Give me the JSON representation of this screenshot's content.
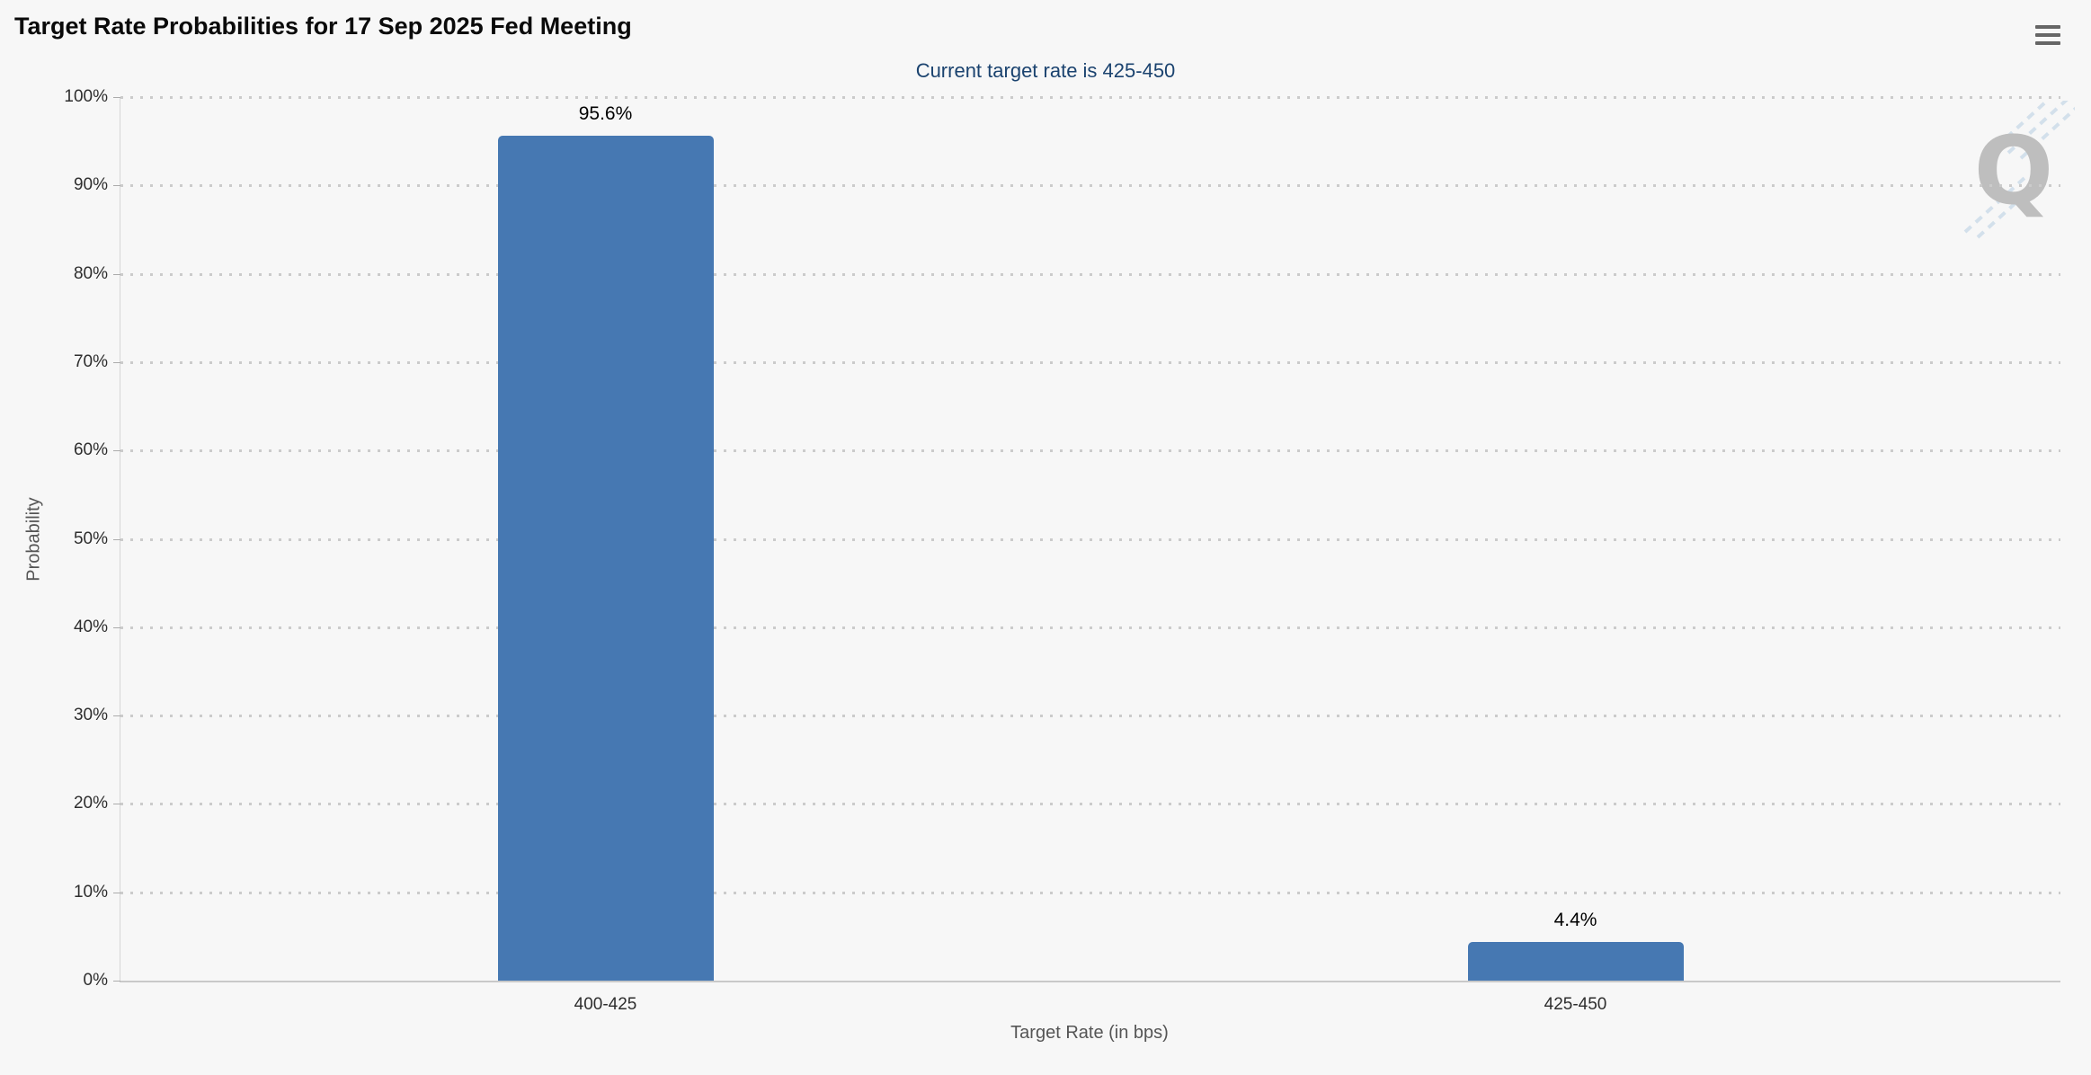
{
  "watermark": {
    "letter": "Q"
  },
  "menu": {
    "tooltip": "Chart context menu"
  },
  "chart_data": {
    "type": "bar",
    "title": "Target Rate Probabilities for 17 Sep 2025 Fed Meeting",
    "subtitle": "Current target rate is 425-450",
    "categories": [
      "400-425",
      "425-450"
    ],
    "values": [
      95.6,
      4.4
    ],
    "labels": [
      "95.6%",
      "4.4%"
    ],
    "xlabel": "Target Rate (in bps)",
    "ylabel": "Probability",
    "ylim": [
      0,
      100
    ],
    "yticks": [
      "0%",
      "10%",
      "20%",
      "30%",
      "40%",
      "50%",
      "60%",
      "70%",
      "80%",
      "90%",
      "100%"
    ],
    "grid": "horizontal-dotted",
    "legend": "none",
    "bar_color": "#4678b2",
    "background_color": "#f7f7f7"
  }
}
